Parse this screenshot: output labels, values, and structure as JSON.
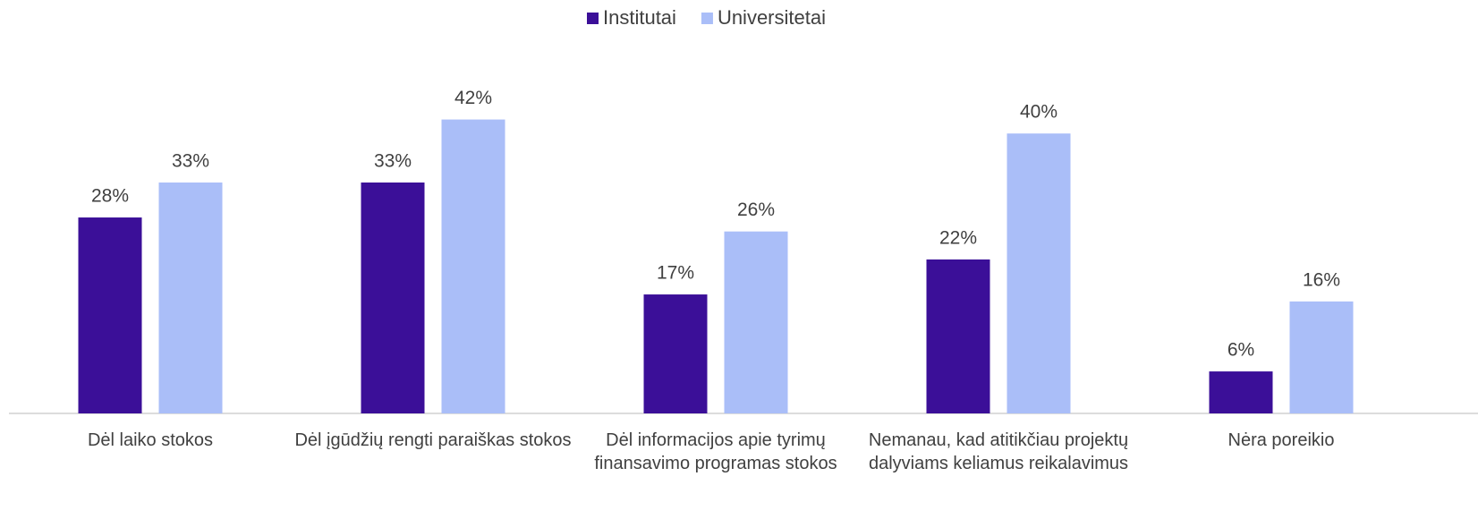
{
  "chart_data": {
    "type": "bar",
    "categories": [
      "Dėl laiko stokos",
      "Dėl įgūdžių rengti paraiškas stokos",
      "Dėl informacijos apie tyrimų finansavimo programas stokos",
      "Nemanau, kad atitikčiau projektų dalyviams keliamus reikalavimus",
      "Nėra poreikio"
    ],
    "series": [
      {
        "name": "Institutai",
        "color": "#3b0f98",
        "values": [
          28,
          33,
          17,
          22,
          6
        ],
        "value_labels": [
          "28%",
          "33%",
          "17%",
          "22%",
          "6%"
        ]
      },
      {
        "name": "Universitetai",
        "color": "#aabef8",
        "values": [
          33,
          42,
          26,
          40,
          16
        ],
        "value_labels": [
          "33%",
          "42%",
          "26%",
          "40%",
          "16%"
        ]
      }
    ],
    "legend": "top"
  }
}
